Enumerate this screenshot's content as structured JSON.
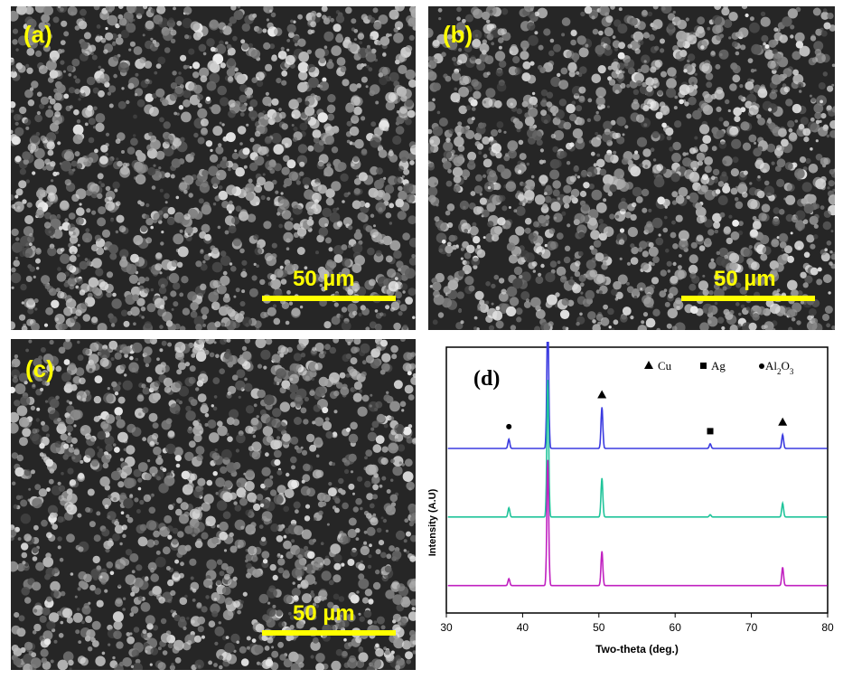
{
  "panels": [
    {
      "id": "a",
      "label": "(a)",
      "scalebar": "50 µm"
    },
    {
      "id": "b",
      "label": "(b)",
      "scalebar": "50 µm"
    },
    {
      "id": "c",
      "label": "(c)",
      "scalebar": "50 µm"
    }
  ],
  "colors": {
    "label": "#ffff00",
    "sem_dark": "#2b2b2b",
    "sem_light": "#d9d9d9"
  },
  "chart_data": {
    "type": "line",
    "panel_label": "(d)",
    "xlabel": "Two-theta (deg.)",
    "ylabel": "Intensity (A.U)",
    "xlim": [
      30,
      80
    ],
    "xticks": [
      "30",
      "40",
      "50",
      "60",
      "70",
      "80"
    ],
    "legend": [
      {
        "marker": "triangle",
        "label": "Cu"
      },
      {
        "marker": "square",
        "label": "Ag"
      },
      {
        "marker": "circle",
        "label": "Al2O3"
      }
    ],
    "peaks": [
      {
        "x": 38.2,
        "phase": "Al2O3",
        "marker": "circle"
      },
      {
        "x": 43.3,
        "phase": "Cu",
        "marker": "triangle"
      },
      {
        "x": 50.4,
        "phase": "Cu",
        "marker": "triangle"
      },
      {
        "x": 64.6,
        "phase": "Ag",
        "marker": "square"
      },
      {
        "x": 74.1,
        "phase": "Cu",
        "marker": "triangle"
      }
    ],
    "series": [
      {
        "color": "#3a3ae0",
        "baseline": 0.72,
        "peaks": [
          [
            38.2,
            0.04
          ],
          [
            43.3,
            0.58
          ],
          [
            50.4,
            0.18
          ],
          [
            64.6,
            0.02
          ],
          [
            74.1,
            0.06
          ]
        ]
      },
      {
        "color": "#20c49a",
        "baseline": 0.42,
        "peaks": [
          [
            38.2,
            0.04
          ],
          [
            43.3,
            0.6
          ],
          [
            50.4,
            0.17
          ],
          [
            64.6,
            0.01
          ],
          [
            74.1,
            0.06
          ]
        ]
      },
      {
        "color": "#c020c0",
        "baseline": 0.12,
        "peaks": [
          [
            38.2,
            0.03
          ],
          [
            43.3,
            0.55
          ],
          [
            50.4,
            0.15
          ],
          [
            74.1,
            0.08
          ]
        ]
      }
    ]
  }
}
